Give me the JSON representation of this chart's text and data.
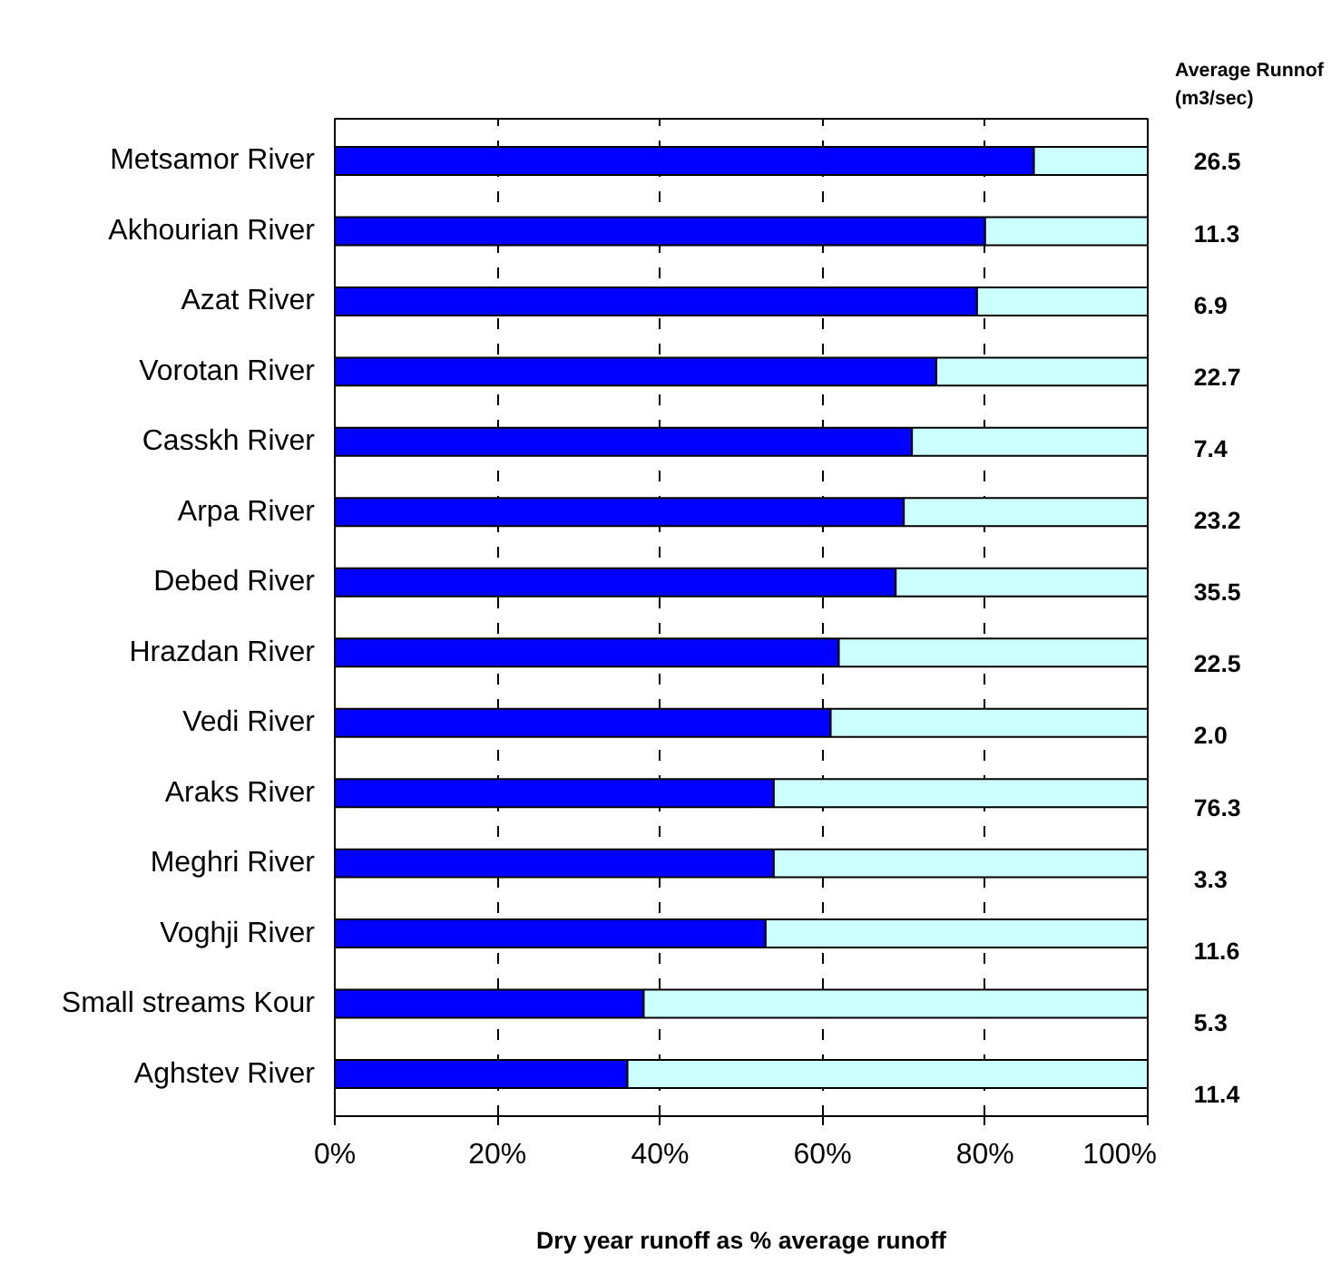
{
  "chart_data": {
    "type": "bar",
    "orientation": "horizontal",
    "stacked": true,
    "xlabel": "Dry year runoff as % average runoff",
    "categories": [
      "Metsamor River",
      "Akhourian River",
      "Azat River",
      "Vorotan River",
      "Casskh River",
      "Arpa River",
      "Debed River",
      "Hrazdan River",
      "Vedi River",
      "Araks River",
      "Meghri River",
      "Voghji River",
      "Small streams Kour",
      "Aghstev River"
    ],
    "series": [
      {
        "color": "#0000ff",
        "values": [
          86,
          80,
          79,
          74,
          71,
          70,
          69,
          62,
          61,
          54,
          54,
          53,
          38,
          36
        ]
      },
      {
        "color": "#ccffff",
        "values": [
          14,
          20,
          21,
          26,
          29,
          30,
          31,
          38,
          39,
          46,
          46,
          47,
          62,
          64
        ]
      }
    ],
    "xlim": [
      0,
      100
    ],
    "xticks": [
      {
        "value": 0,
        "label": "0%"
      },
      {
        "value": 20,
        "label": "20%"
      },
      {
        "value": 40,
        "label": "40%"
      },
      {
        "value": 60,
        "label": "60%"
      },
      {
        "value": 80,
        "label": "80%"
      },
      {
        "value": 100,
        "label": "100%"
      }
    ],
    "grid": "x",
    "annotations": [
      "Average Runnof\n(m3/sec)",
      "26.5",
      "11.3",
      "6.9",
      "22.7",
      "7.4",
      "23.2",
      "35.5",
      "22.5",
      "2.0",
      "76.3",
      "3.3",
      "11.6",
      "5.3",
      "11.4"
    ]
  }
}
